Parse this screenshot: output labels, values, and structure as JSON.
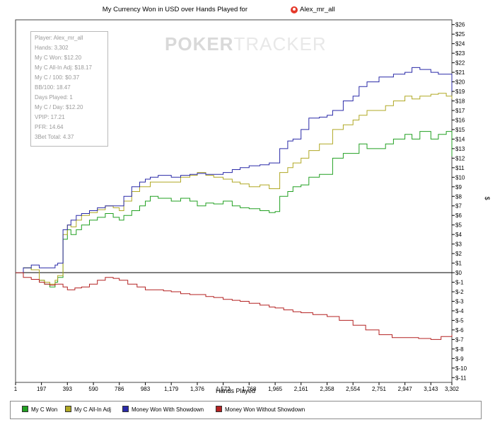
{
  "chart_data": {
    "type": "line",
    "title": "My Currency Won in USD over Hands Played for",
    "player_name": "Alex_mr_all",
    "watermark": "POKERTRACKER",
    "xlabel": "Hands Played",
    "ylabel": "$",
    "xlim": [
      1,
      3302
    ],
    "ylim": [
      -11,
      26
    ],
    "x_ticks": [
      "1",
      "197",
      "393",
      "590",
      "786",
      "983",
      "1,179",
      "1,376",
      "1,572",
      "1,768",
      "1,965",
      "2,161",
      "2,358",
      "2,554",
      "2,751",
      "2,947",
      "3,143",
      "3,302"
    ],
    "y_ticks": [
      26,
      25,
      24,
      23,
      22,
      21,
      20,
      19,
      18,
      17,
      16,
      15,
      14,
      13,
      12,
      11,
      10,
      9,
      8,
      7,
      6,
      5,
      4,
      3,
      2,
      1,
      0,
      -1,
      -2,
      -3,
      -4,
      -5,
      -6,
      -7,
      -8,
      -9,
      -10,
      -11
    ],
    "y_tick_labels": [
      "$26",
      "$25",
      "$24",
      "$23",
      "$22",
      "$21",
      "$20",
      "$19",
      "$18",
      "$17",
      "$16",
      "$15",
      "$14",
      "$13",
      "$12",
      "$11",
      "$10",
      "$9",
      "$8",
      "$7",
      "$6",
      "$5",
      "$4",
      "$3",
      "$2",
      "$1",
      "$0",
      "$-1",
      "$-2",
      "$-3",
      "$-4",
      "$-5",
      "$-6",
      "$-7",
      "$-8",
      "$-9",
      "$-10",
      "$-11"
    ],
    "series": [
      {
        "name": "My C Won",
        "color": "#22a022",
        "x": [
          1,
          60,
          120,
          180,
          220,
          260,
          300,
          320,
          360,
          393,
          420,
          460,
          500,
          560,
          620,
          680,
          740,
          786,
          820,
          880,
          940,
          983,
          1020,
          1080,
          1179,
          1250,
          1320,
          1376,
          1440,
          1500,
          1572,
          1640,
          1700,
          1768,
          1850,
          1920,
          1965,
          2000,
          2060,
          2100,
          2161,
          2220,
          2300,
          2358,
          2400,
          2480,
          2554,
          2600,
          2660,
          2751,
          2800,
          2860,
          2947,
          3000,
          3060,
          3143,
          3200,
          3260,
          3302
        ],
        "y": [
          0,
          0.5,
          0.3,
          -0.8,
          -1.2,
          -1.5,
          -1.0,
          -0.5,
          3.5,
          4.5,
          4.0,
          4.5,
          5.0,
          5.5,
          5.8,
          6.2,
          5.8,
          5.5,
          6.0,
          6.5,
          7.0,
          7.5,
          8.0,
          7.8,
          7.5,
          7.8,
          7.5,
          7.0,
          7.3,
          7.2,
          7.5,
          7.0,
          6.8,
          6.7,
          6.5,
          6.3,
          6.4,
          8.0,
          8.5,
          9.0,
          9.2,
          10.0,
          10.3,
          10.3,
          12.0,
          12.5,
          12.5,
          13.5,
          13.0,
          13.0,
          13.5,
          14.0,
          14.5,
          14.0,
          14.8,
          14.0,
          14.5,
          14.8,
          12.2
        ]
      },
      {
        "name": "My C All-In Adj",
        "color": "#b0a824",
        "x": [
          1,
          60,
          120,
          180,
          220,
          260,
          300,
          320,
          360,
          393,
          420,
          460,
          500,
          560,
          620,
          680,
          740,
          786,
          820,
          880,
          940,
          983,
          1020,
          1080,
          1179,
          1250,
          1320,
          1376,
          1440,
          1500,
          1572,
          1640,
          1700,
          1768,
          1850,
          1920,
          1965,
          2000,
          2060,
          2100,
          2161,
          2220,
          2300,
          2358,
          2400,
          2480,
          2554,
          2600,
          2660,
          2751,
          2800,
          2860,
          2947,
          3000,
          3060,
          3143,
          3200,
          3260,
          3302
        ],
        "y": [
          0,
          0.5,
          0.3,
          -0.8,
          -1.0,
          -1.2,
          -0.8,
          -0.3,
          4.0,
          5.0,
          4.8,
          5.5,
          6.0,
          6.3,
          6.6,
          7.0,
          6.8,
          6.5,
          7.5,
          8.5,
          9.0,
          9.0,
          9.5,
          9.5,
          9.5,
          10.0,
          10.2,
          10.5,
          10.2,
          10.0,
          9.8,
          9.5,
          9.3,
          9.0,
          9.2,
          8.8,
          8.8,
          10.5,
          11.0,
          11.5,
          12.0,
          12.8,
          13.5,
          13.5,
          15.0,
          15.5,
          16.0,
          16.5,
          17.0,
          17.0,
          17.5,
          18.0,
          18.5,
          18.2,
          18.5,
          18.7,
          18.8,
          18.5,
          18.2
        ]
      },
      {
        "name": "Money Won With Showdown",
        "color": "#2a2aa8",
        "x": [
          1,
          60,
          120,
          180,
          220,
          260,
          300,
          320,
          360,
          393,
          420,
          460,
          500,
          560,
          620,
          680,
          740,
          786,
          820,
          880,
          940,
          983,
          1020,
          1080,
          1179,
          1250,
          1320,
          1376,
          1440,
          1500,
          1572,
          1640,
          1700,
          1768,
          1850,
          1920,
          1965,
          2000,
          2060,
          2100,
          2161,
          2220,
          2300,
          2358,
          2400,
          2480,
          2554,
          2600,
          2660,
          2751,
          2800,
          2860,
          2947,
          3000,
          3060,
          3143,
          3200,
          3260,
          3302
        ],
        "y": [
          0,
          0.5,
          0.8,
          0.5,
          0.5,
          0.5,
          0.8,
          1.0,
          4.5,
          5.0,
          5.5,
          6.0,
          6.2,
          6.5,
          6.8,
          7.0,
          7.0,
          7.0,
          8.0,
          9.0,
          9.5,
          9.8,
          10.0,
          10.2,
          10.0,
          10.2,
          10.3,
          10.4,
          10.3,
          10.3,
          10.5,
          10.8,
          11.0,
          11.2,
          11.3,
          11.5,
          11.5,
          13.0,
          13.8,
          14.0,
          15.0,
          16.2,
          16.3,
          16.5,
          17.0,
          18.0,
          18.5,
          19.5,
          20.0,
          20.5,
          20.5,
          20.8,
          21.0,
          21.5,
          21.3,
          21.0,
          20.8,
          20.8,
          19.0
        ]
      },
      {
        "name": "Money Won Without Showdown",
        "color": "#b42222",
        "x": [
          1,
          60,
          120,
          180,
          220,
          260,
          300,
          360,
          393,
          450,
          500,
          560,
          620,
          680,
          740,
          786,
          850,
          920,
          983,
          1050,
          1120,
          1179,
          1250,
          1320,
          1376,
          1440,
          1500,
          1572,
          1640,
          1700,
          1768,
          1850,
          1920,
          1965,
          2030,
          2100,
          2161,
          2250,
          2358,
          2450,
          2554,
          2650,
          2751,
          2850,
          2947,
          3050,
          3143,
          3220,
          3302
        ],
        "y": [
          0,
          -0.5,
          -0.7,
          -1.0,
          -1.2,
          -1.3,
          -1.2,
          -1.5,
          -1.8,
          -1.6,
          -1.5,
          -1.2,
          -0.8,
          -0.5,
          -0.6,
          -0.8,
          -1.2,
          -1.5,
          -1.8,
          -1.8,
          -1.9,
          -2.0,
          -2.2,
          -2.3,
          -2.3,
          -2.5,
          -2.6,
          -2.8,
          -2.9,
          -3.0,
          -3.2,
          -3.4,
          -3.6,
          -3.7,
          -3.9,
          -4.1,
          -4.2,
          -4.4,
          -4.6,
          -5.0,
          -5.5,
          -6.0,
          -6.5,
          -6.8,
          -6.8,
          -6.9,
          -7.0,
          -6.7,
          -6.5
        ]
      }
    ],
    "legend_position": "bottom",
    "grid": false
  },
  "stats": [
    "Player: Alex_mr_all",
    "Hands: 3,302",
    "My C Won: $12.20",
    "My C All-In Adj: $18.17",
    "My C / 100: $0.37",
    "BB/100: 18.47",
    "Days Played: 1",
    "My C / Day: $12.20",
    "VPIP: 17.21",
    "PFR: 14.64",
    "3Bet Total: 4.37"
  ]
}
